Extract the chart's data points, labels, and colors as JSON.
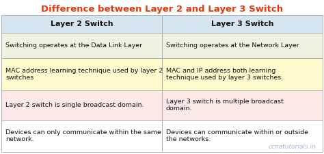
{
  "title": "Difference between Layer 2 and Layer 3 Switch",
  "title_color": "#e8360a",
  "title_fontsize": 9.5,
  "col1_header": "Layer 2 Switch",
  "col2_header": "Layer 3 Switch",
  "header_bg": "#d6e4f0",
  "header_fontsize": 8,
  "row_bg_colors": [
    "#edf3e0",
    "#fffacd",
    "#fde8e8",
    "#ffffff"
  ],
  "border_color": "#b0b0b0",
  "text_color": "#111111",
  "watermark_color": "#9ab0cc",
  "watermark_text": "ccnatutorials.in",
  "cell_fontsize": 6.8,
  "col_split": 0.5,
  "rows": [
    [
      "Switching operates at the Data Link Layer",
      "Switching operates at the Network Layer"
    ],
    [
      "MAC address learning technique used by layer 2\nswitches",
      "MAC and IP address both learning\ntechnique used by layer 3 switches."
    ],
    [
      "Layer 2 switch is single broadcast domain.",
      "Layer 3 switch is multiple broadcast\ndomain."
    ],
    [
      "Devices can only communicate within the same\nnetwork.",
      "Devices can communicate within or outside\nthe networks."
    ]
  ]
}
